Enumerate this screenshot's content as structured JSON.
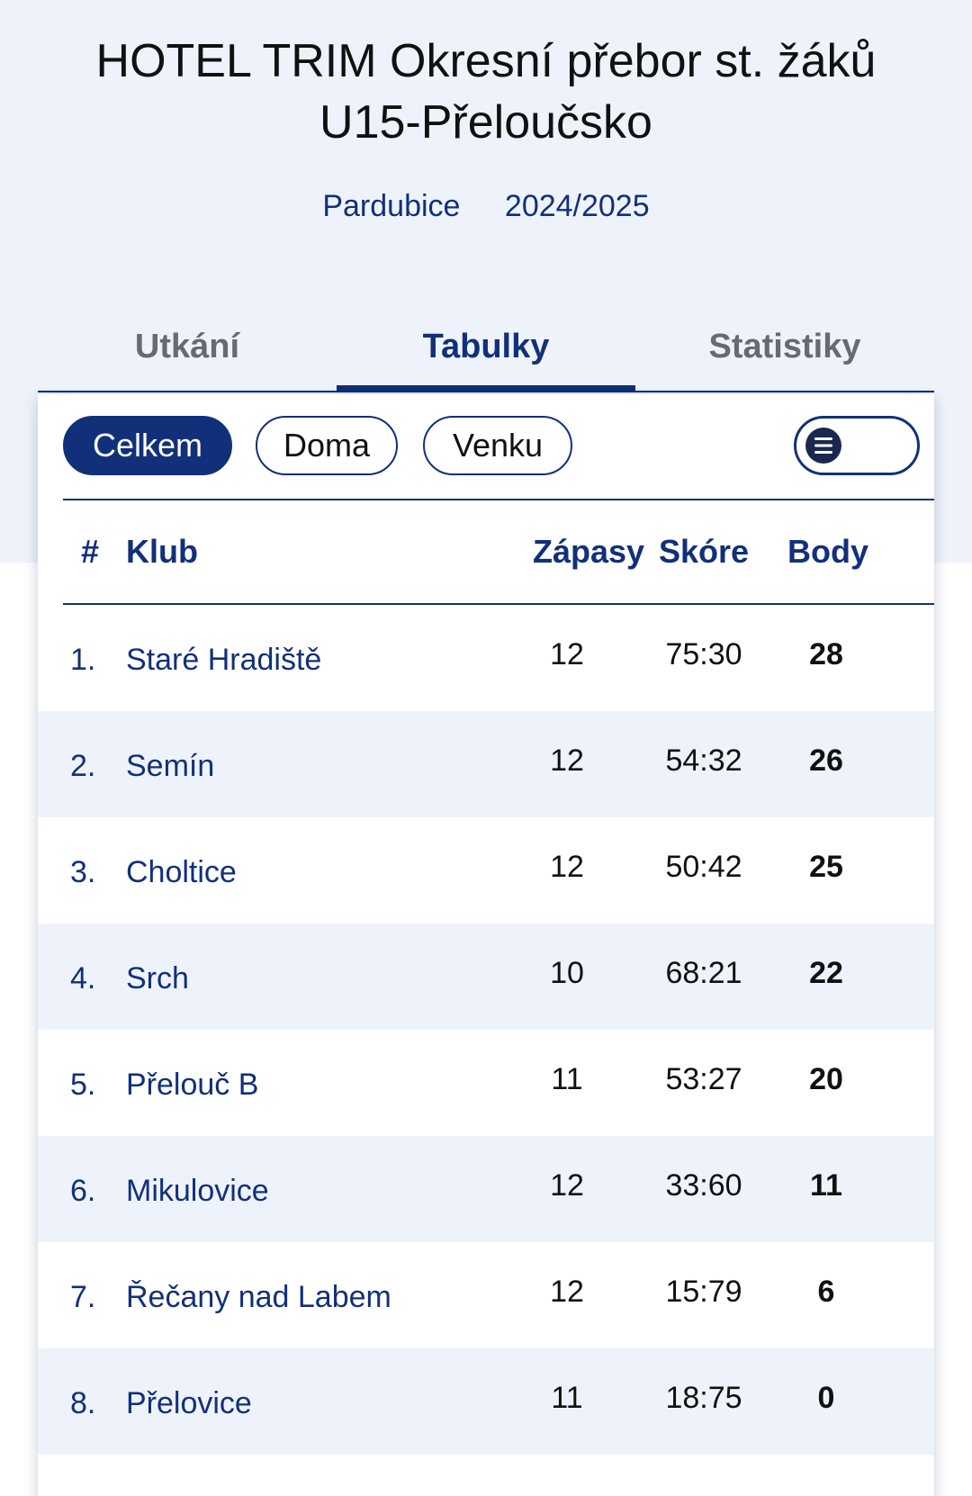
{
  "header": {
    "title": "HOTEL TRIM Okresní přebor st. žáků U15-Přeloučsko",
    "region": "Pardubice",
    "season": "2024/2025"
  },
  "tabs": [
    {
      "label": "Utkání",
      "active": false
    },
    {
      "label": "Tabulky",
      "active": true
    },
    {
      "label": "Statistiky",
      "active": false
    }
  ],
  "filters": {
    "options": [
      {
        "label": "Celkem",
        "active": true
      },
      {
        "label": "Doma",
        "active": false
      },
      {
        "label": "Venku",
        "active": false
      }
    ],
    "view_toggle_icon": "list-icon"
  },
  "table": {
    "headers": {
      "rank": "#",
      "club": "Klub",
      "matches": "Zápasy",
      "score": "Skóre",
      "points": "Body"
    },
    "rows": [
      {
        "rank": "1.",
        "club": "Staré Hradiště",
        "matches": "12",
        "score": "75:30",
        "points": "28"
      },
      {
        "rank": "2.",
        "club": "Semín",
        "matches": "12",
        "score": "54:32",
        "points": "26"
      },
      {
        "rank": "3.",
        "club": "Choltice",
        "matches": "12",
        "score": "50:42",
        "points": "25"
      },
      {
        "rank": "4.",
        "club": "Srch",
        "matches": "10",
        "score": "68:21",
        "points": "22"
      },
      {
        "rank": "5.",
        "club": "Přelouč B",
        "matches": "11",
        "score": "53:27",
        "points": "20"
      },
      {
        "rank": "6.",
        "club": "Mikulovice",
        "matches": "12",
        "score": "33:60",
        "points": "11"
      },
      {
        "rank": "7.",
        "club": "Řečany nad Labem",
        "matches": "12",
        "score": "15:79",
        "points": "6"
      },
      {
        "rank": "8.",
        "club": "Přelovice",
        "matches": "11",
        "score": "18:75",
        "points": "0"
      }
    ]
  },
  "colors": {
    "accent": "#12307a",
    "hero_bg": "#eef3fb",
    "row_alt": "#eef3fb"
  }
}
